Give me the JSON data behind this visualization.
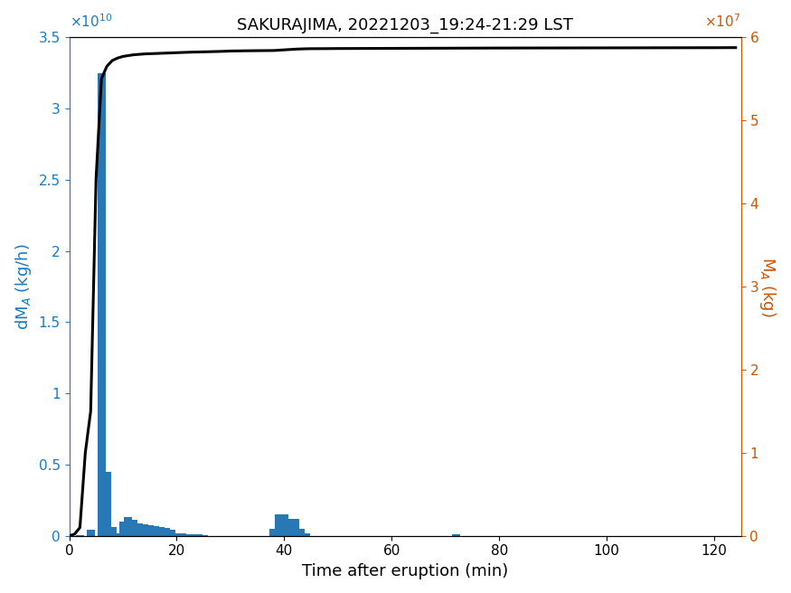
{
  "title": "SAKURAJIMA, 20221203_19:24-21:29 LST",
  "xlabel": "Time after eruption (min)",
  "ylabel_left": "dM$_A$ (kg/h)",
  "ylabel_right": "M$_A$ (kg)",
  "bar_color": "#2878b5",
  "line_color": "#000000",
  "left_axis_color": "#1a7abf",
  "right_axis_color": "#cc5500",
  "xlim": [
    0,
    125
  ],
  "ylim_left": [
    0,
    35000000000.0
  ],
  "ylim_right": [
    0,
    60000000.0
  ],
  "bar_width": 1.5,
  "bar_centers": [
    2,
    4,
    6,
    7,
    8,
    9,
    10,
    11,
    12,
    13,
    14,
    15,
    16,
    17,
    18,
    19,
    20,
    21,
    22,
    23,
    24,
    25,
    38,
    39,
    40,
    41,
    42,
    43,
    44,
    72
  ],
  "bar_heights": [
    50000000.0,
    450000000.0,
    32500000000.0,
    4500000000.0,
    600000000.0,
    150000000.0,
    1000000000.0,
    1300000000.0,
    1100000000.0,
    900000000.0,
    800000000.0,
    750000000.0,
    650000000.0,
    600000000.0,
    550000000.0,
    400000000.0,
    200000000.0,
    150000000.0,
    120000000.0,
    100000000.0,
    80000000.0,
    60000000.0,
    500000000.0,
    1500000000.0,
    1500000000.0,
    1200000000.0,
    1200000000.0,
    500000000.0,
    200000000.0,
    100000000.0
  ],
  "cum_times": [
    0,
    1,
    2,
    3,
    4,
    5,
    6,
    7,
    8,
    9,
    10,
    12,
    14,
    16,
    18,
    20,
    22,
    25,
    28,
    30,
    33,
    36,
    38,
    39,
    40,
    41,
    42,
    43,
    44,
    45,
    48,
    50,
    55,
    60,
    65,
    70,
    75,
    80,
    90,
    100,
    110,
    120,
    124
  ],
  "cum_values": [
    0,
    200000.0,
    1000000.0,
    10000000.0,
    15000000.0,
    43000000.0,
    55000000.0,
    56500000.0,
    57200000.0,
    57500000.0,
    57700000.0,
    57900000.0,
    58000000.0,
    58050000.0,
    58100000.0,
    58150000.0,
    58200000.0,
    58250000.0,
    58300000.0,
    58350000.0,
    58380000.0,
    58400000.0,
    58410000.0,
    58450000.0,
    58490000.0,
    58530000.0,
    58570000.0,
    58600000.0,
    58620000.0,
    58630000.0,
    58640000.0,
    58650000.0,
    58660000.0,
    58670000.0,
    58680000.0,
    58690000.0,
    58700000.0,
    58710000.0,
    58720000.0,
    58730000.0,
    58740000.0,
    58750000.0,
    58760000.0
  ]
}
